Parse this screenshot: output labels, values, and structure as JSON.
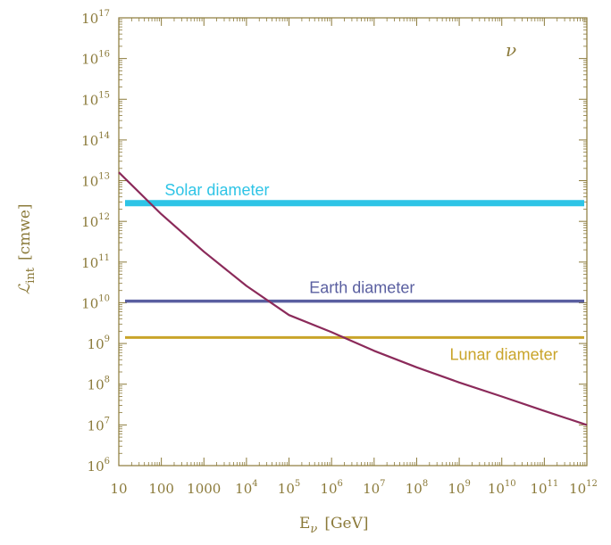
{
  "chart_data": {
    "type": "line",
    "xscale": "log",
    "yscale": "log",
    "xlim": [
      10,
      1000000000000.0
    ],
    "ylim": [
      1000000.0,
      1e+17
    ],
    "x_ticks": [
      {
        "base": "10",
        "exp": ""
      },
      {
        "base": "100",
        "exp": ""
      },
      {
        "base": "1000",
        "exp": ""
      },
      {
        "base": "10",
        "exp": "4"
      },
      {
        "base": "10",
        "exp": "5"
      },
      {
        "base": "10",
        "exp": "6"
      },
      {
        "base": "10",
        "exp": "7"
      },
      {
        "base": "10",
        "exp": "8"
      },
      {
        "base": "10",
        "exp": "9"
      },
      {
        "base": "10",
        "exp": "10"
      },
      {
        "base": "10",
        "exp": "11"
      },
      {
        "base": "10",
        "exp": "12"
      }
    ],
    "x_tick_values": [
      10.0,
      100.0,
      1000.0,
      10000.0,
      100000.0,
      1000000.0,
      10000000.0,
      100000000.0,
      1000000000.0,
      10000000000.0,
      100000000000.0,
      1000000000000.0
    ],
    "y_ticks": [
      {
        "base": "10",
        "exp": "6"
      },
      {
        "base": "10",
        "exp": "7"
      },
      {
        "base": "10",
        "exp": "8"
      },
      {
        "base": "10",
        "exp": "9"
      },
      {
        "base": "10",
        "exp": "10"
      },
      {
        "base": "10",
        "exp": "11"
      },
      {
        "base": "10",
        "exp": "12"
      },
      {
        "base": "10",
        "exp": "13"
      },
      {
        "base": "10",
        "exp": "14"
      },
      {
        "base": "10",
        "exp": "15"
      },
      {
        "base": "10",
        "exp": "16"
      },
      {
        "base": "10",
        "exp": "17"
      }
    ],
    "y_tick_values": [
      1000000.0,
      10000000.0,
      100000000.0,
      1000000000.0,
      10000000000.0,
      100000000000.0,
      1000000000000.0,
      10000000000000.0,
      100000000000000.0,
      1000000000000000.0,
      1e+16,
      1e+17
    ],
    "xlabel": {
      "main": "E",
      "sub": "ν",
      "unit": "[GeV]"
    },
    "ylabel": {
      "main": "ℒ",
      "sub": "int",
      "unit": "[cmwe]"
    },
    "annotation": "ν",
    "series": [
      {
        "values_x": [
          10,
          100,
          1000,
          10000.0,
          100000.0,
          1000000.0,
          10000000.0,
          100000000.0,
          1000000000.0,
          10000000000.0,
          100000000000.0,
          1000000000000.0
        ],
        "values_y": [
          16000000000000.0,
          1500000000000.0,
          180000000000.0,
          26000000000.0,
          5000000000.0,
          1900000000.0,
          660000000.0,
          260000000.0,
          110000000.0,
          50000000.0,
          22000000.0,
          10000000.0
        ],
        "color": "#8B2A5A"
      }
    ],
    "reference_lines": [
      {
        "name": "Solar diameter",
        "y": 2800000000000.0,
        "color": "#2EC4E6",
        "label_x": 120
      },
      {
        "name": "Earth diameter",
        "y": 11000000000.0,
        "color": "#5A5FA0",
        "label_x": 300000.0
      },
      {
        "name": "Lunar diameter",
        "y": 1400000000.0,
        "color": "#C9A42A",
        "label_x": 600000000.0
      }
    ],
    "axis_color": "#8B7A3A",
    "grid": false
  }
}
